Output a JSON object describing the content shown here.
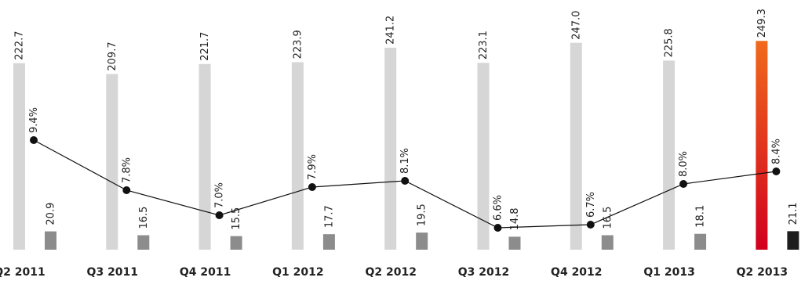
{
  "chart_data": {
    "type": "bar",
    "categories": [
      "Q2 2011",
      "Q3 2011",
      "Q4 2011",
      "Q1 2012",
      "Q2 2012",
      "Q3 2012",
      "Q4 2012",
      "Q1 2013",
      "Q2 2013"
    ],
    "series": [
      {
        "kind": "bar",
        "values": [
          222.7,
          209.7,
          221.7,
          223.9,
          241.2,
          223.1,
          247.0,
          225.8,
          249.3
        ],
        "labels": [
          "222.7",
          "209.7",
          "221.7",
          "223.9",
          "241.2",
          "223.1",
          "247.0",
          "225.8",
          "249.3"
        ],
        "color": "#d6d6d6",
        "highlight_color_top": "#f06a1c",
        "highlight_color_bottom": "#d1001f"
      },
      {
        "kind": "bar",
        "values": [
          20.9,
          16.5,
          15.5,
          17.7,
          19.5,
          14.8,
          16.5,
          18.1,
          21.1
        ],
        "labels": [
          "20.9",
          "16.5",
          "15.5",
          "17.7",
          "19.5",
          "14.8",
          "16.5",
          "18.1",
          "21.1"
        ],
        "color": "#8c8c8c",
        "highlight_color": "#1e1e1e"
      },
      {
        "kind": "line",
        "values": [
          9.4,
          7.8,
          7.0,
          7.9,
          8.1,
          6.6,
          6.7,
          8.0,
          8.4
        ],
        "labels": [
          "9.4%",
          "7.8%",
          "7.0%",
          "7.9%",
          "8.1%",
          "6.6%",
          "6.7%",
          "8.0%",
          "8.4%"
        ],
        "color": "#111111"
      }
    ],
    "highlight_index": 8,
    "title": "",
    "xlabel": "",
    "ylabel": "",
    "grid": false,
    "legend": "none"
  }
}
